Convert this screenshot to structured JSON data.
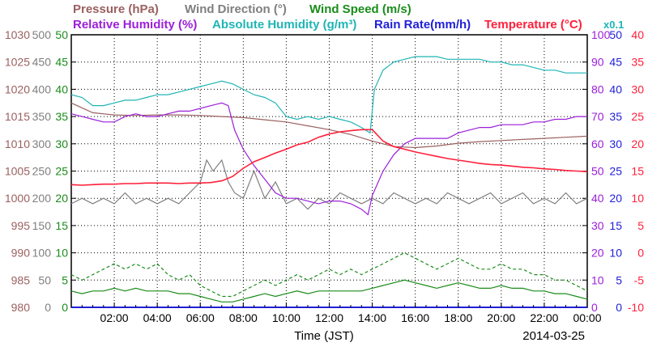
{
  "chart_data": {
    "type": "line",
    "date": "2014-03-25",
    "xlabel": "Time (JST)",
    "grid": true,
    "x_ticks": [
      "02:00",
      "04:00",
      "06:00",
      "08:00",
      "10:00",
      "12:00",
      "14:00",
      "16:00",
      "18:00",
      "20:00",
      "22:00",
      "00:00"
    ],
    "x_range_hours": [
      0,
      24
    ],
    "legend": {
      "row1": [
        {
          "key": "pressure",
          "text": "Pressure (hPa)"
        },
        {
          "key": "wind_dir",
          "text": "Wind Direction (°)"
        },
        {
          "key": "wind_speed",
          "text": "Wind Speed (m/s)"
        }
      ],
      "row2": [
        {
          "key": "rh",
          "text": "Relative Humidity (%)"
        },
        {
          "key": "abs_hum",
          "text": "Absolute Humidity (g/m³)"
        },
        {
          "key": "rain",
          "text": "Rain Rate(mm/h)"
        },
        {
          "key": "temp",
          "text": "Temperature (°C)"
        },
        {
          "key": "rain_x",
          "text": "x0.1"
        }
      ]
    },
    "axes": {
      "pressure": {
        "color": "#9b6060",
        "min": 980,
        "max": 1030,
        "ticks": [
          "1030",
          "1025",
          "1020",
          "1015",
          "1010",
          "1005",
          "1000",
          "995",
          "990",
          "985",
          "980"
        ]
      },
      "wind_dir": {
        "color": "#7f7f7f",
        "min": 0,
        "max": 500,
        "ticks": [
          "500",
          "450",
          "400",
          "350",
          "300",
          "250",
          "200",
          "150",
          "100",
          "50",
          "0"
        ]
      },
      "wind_speed": {
        "color": "#1a8c1a",
        "min": 0,
        "max": 50,
        "ticks": [
          "50",
          "45",
          "40",
          "35",
          "30",
          "25",
          "20",
          "15",
          "10",
          "5",
          "0"
        ]
      },
      "rh": {
        "color": "#9b1fd9",
        "min": 0,
        "max": 100,
        "ticks": [
          "100",
          "90",
          "80",
          "70",
          "60",
          "50",
          "40",
          "30",
          "20",
          "10",
          "0"
        ]
      },
      "rain": {
        "color": "#1f1fd9",
        "min": 0,
        "max": 50,
        "ticks": [
          "50",
          "45",
          "40",
          "35",
          "30",
          "25",
          "20",
          "15",
          "10",
          "5",
          "0"
        ]
      },
      "temp": {
        "color": "#ff1f3a",
        "min": -10,
        "max": 40,
        "ticks": [
          "40",
          "35",
          "30",
          "25",
          "20",
          "15",
          "10",
          "5",
          "0",
          "-5",
          "-10"
        ]
      }
    },
    "series": [
      {
        "name": "Pressure (hPa)",
        "axis": "pressure",
        "color": "#9b6060",
        "x": [
          0,
          1,
          2,
          3,
          4,
          5,
          6,
          7,
          8,
          9,
          10,
          11,
          12,
          13,
          14,
          15,
          16,
          17,
          18,
          19,
          20,
          21,
          22,
          23,
          24
        ],
        "y": [
          1017.5,
          1015.7,
          1015.3,
          1015.2,
          1015.3,
          1015.3,
          1015.2,
          1015.0,
          1014.8,
          1014.4,
          1014.0,
          1013.3,
          1012.6,
          1011.7,
          1010.5,
          1009.5,
          1009.3,
          1009.6,
          1010.1,
          1010.4,
          1010.6,
          1010.8,
          1011.0,
          1011.2,
          1011.4
        ]
      },
      {
        "name": "Wind Direction (°)",
        "axis": "wind_dir",
        "color": "#7f7f7f",
        "x": [
          0,
          0.5,
          1,
          1.5,
          2,
          2.5,
          3,
          3.5,
          4,
          4.5,
          5,
          5.5,
          6,
          6.3,
          6.6,
          7,
          7.3,
          7.6,
          8,
          8.5,
          9,
          9.5,
          10,
          10.5,
          11,
          11.5,
          12,
          12.5,
          13,
          13.5,
          14,
          14.5,
          15,
          15.5,
          16,
          16.5,
          17,
          17.5,
          18,
          18.5,
          19,
          19.5,
          20,
          20.5,
          21,
          21.5,
          22,
          22.5,
          23,
          23.5,
          24
        ],
        "y": [
          190,
          200,
          190,
          200,
          190,
          210,
          190,
          200,
          190,
          200,
          190,
          210,
          230,
          270,
          250,
          270,
          230,
          210,
          200,
          250,
          200,
          230,
          190,
          200,
          180,
          200,
          190,
          210,
          200,
          190,
          200,
          190,
          210,
          200,
          190,
          200,
          190,
          210,
          200,
          190,
          200,
          210,
          190,
          200,
          210,
          190,
          200,
          190,
          210,
          190,
          200
        ]
      },
      {
        "name": "Wind Speed (m/s) peak",
        "axis": "wind_speed",
        "color": "#1a8c1a",
        "dashed": true,
        "x": [
          0,
          0.5,
          1,
          1.5,
          2,
          2.5,
          3,
          3.5,
          4,
          4.5,
          5,
          5.5,
          6,
          6.5,
          7,
          7.5,
          8,
          8.5,
          9,
          9.5,
          10,
          10.5,
          11,
          11.5,
          12,
          12.5,
          13,
          13.5,
          14,
          14.5,
          15,
          15.5,
          16,
          16.5,
          17,
          17.5,
          18,
          18.5,
          19,
          19.5,
          20,
          20.5,
          21,
          21.5,
          22,
          22.5,
          23,
          23.5,
          24
        ],
        "y": [
          6,
          5,
          6,
          7,
          8,
          7,
          8,
          7,
          8,
          6,
          5,
          6,
          4,
          3,
          2,
          2,
          3,
          4,
          5,
          4,
          5,
          6,
          5,
          6,
          7,
          6,
          7,
          6,
          7,
          8,
          9,
          10,
          9,
          8,
          7,
          8,
          9,
          8,
          7,
          7,
          8,
          7,
          7,
          6,
          6,
          5,
          5,
          4,
          3
        ]
      },
      {
        "name": "Wind Speed (m/s)",
        "axis": "wind_speed",
        "color": "#1a8c1a",
        "x": [
          0,
          0.5,
          1,
          1.5,
          2,
          2.5,
          3,
          3.5,
          4,
          4.5,
          5,
          5.5,
          6,
          6.5,
          7,
          7.5,
          8,
          8.5,
          9,
          9.5,
          10,
          10.5,
          11,
          11.5,
          12,
          12.5,
          13,
          13.5,
          14,
          14.5,
          15,
          15.5,
          16,
          16.5,
          17,
          17.5,
          18,
          18.5,
          19,
          19.5,
          20,
          20.5,
          21,
          21.5,
          22,
          22.5,
          23,
          23.5,
          24
        ],
        "y": [
          3,
          2.5,
          3,
          3,
          3.5,
          3,
          3.5,
          3,
          3,
          3,
          2.5,
          2.5,
          2,
          1.5,
          1,
          1,
          1.5,
          2,
          2.5,
          2,
          2.5,
          3,
          2.5,
          3,
          3,
          3,
          3,
          3,
          3.5,
          4,
          4.5,
          5,
          4.5,
          4,
          3.5,
          4,
          4.5,
          4,
          3.5,
          3.5,
          4,
          3.5,
          3.5,
          3,
          3,
          2.5,
          2.5,
          2,
          1.5
        ]
      },
      {
        "name": "Relative Humidity (%)",
        "axis": "rh",
        "color": "#9b1fd9",
        "x": [
          0,
          0.5,
          1,
          1.5,
          2,
          2.5,
          3,
          3.5,
          4,
          4.5,
          5,
          5.5,
          6,
          6.5,
          7,
          7.3,
          7.6,
          8,
          8.5,
          9,
          9.5,
          10,
          10.5,
          11,
          11.5,
          12,
          12.5,
          13,
          13.5,
          13.8,
          14,
          14.5,
          15,
          15.5,
          16,
          16.5,
          17,
          17.5,
          18,
          18.5,
          19,
          19.5,
          20,
          20.5,
          21,
          21.5,
          22,
          22.5,
          23,
          23.5,
          24
        ],
        "y": [
          71,
          70,
          69,
          68,
          68,
          70,
          71,
          70,
          70,
          71,
          72,
          72,
          73,
          74,
          75,
          74,
          65,
          58,
          52,
          47,
          42,
          40,
          40,
          39,
          38,
          39,
          39,
          38,
          36,
          34,
          41,
          50,
          56,
          60,
          62,
          62,
          62,
          62,
          64,
          65,
          66,
          66,
          67,
          67,
          67,
          68,
          68,
          69,
          69,
          70,
          70
        ]
      },
      {
        "name": "Absolute Humidity (g/m³)",
        "axis": "rh",
        "color": "#1fb5b5",
        "x": [
          0,
          0.5,
          1,
          1.5,
          2,
          2.5,
          3,
          3.5,
          4,
          4.5,
          5,
          5.5,
          6,
          6.5,
          7,
          7.5,
          8,
          8.5,
          9,
          9.5,
          10,
          10.5,
          11,
          11.5,
          12,
          12.5,
          13,
          13.5,
          13.9,
          14.1,
          14.5,
          15,
          15.5,
          16,
          16.5,
          17,
          17.5,
          18,
          18.5,
          19,
          19.5,
          20,
          20.5,
          21,
          21.5,
          22,
          22.5,
          23,
          23.5,
          24
        ],
        "y": [
          78,
          77,
          74,
          74,
          75,
          76,
          76,
          77,
          78,
          78,
          79,
          80,
          81,
          82,
          83,
          82,
          80,
          78,
          77,
          75,
          70,
          69,
          70,
          69,
          70,
          69,
          68,
          66,
          64,
          80,
          87,
          90,
          91,
          92,
          92,
          92,
          91,
          91,
          91,
          91,
          90,
          90,
          89,
          89,
          88,
          87,
          87,
          86,
          86,
          86
        ]
      },
      {
        "name": "Temperature (°C)",
        "axis": "temp",
        "color": "#ff1f3a",
        "x": [
          0,
          0.5,
          1,
          1.5,
          2,
          2.5,
          3,
          3.5,
          4,
          4.5,
          5,
          5.5,
          6,
          6.5,
          7,
          7.5,
          8,
          8.5,
          9,
          9.5,
          10,
          10.5,
          11,
          11.5,
          12,
          12.5,
          13,
          13.5,
          14,
          14.5,
          15,
          15.5,
          16,
          16.5,
          17,
          17.5,
          18,
          18.5,
          19,
          19.5,
          20,
          20.5,
          21,
          21.5,
          22,
          22.5,
          23,
          23.5,
          24
        ],
        "y": [
          12.5,
          12.4,
          12.5,
          12.6,
          12.6,
          12.7,
          12.7,
          12.8,
          12.8,
          12.8,
          12.7,
          12.8,
          12.8,
          12.9,
          13.2,
          14,
          15.5,
          16.7,
          17.5,
          18.3,
          19,
          19.8,
          20.3,
          21.2,
          21.8,
          22.2,
          22.4,
          22.6,
          22.6,
          20.5,
          19.5,
          19,
          18.5,
          18.1,
          17.7,
          17.3,
          17,
          16.7,
          16.4,
          16.2,
          16.1,
          15.9,
          15.7,
          15.6,
          15.4,
          15.3,
          15.1,
          15,
          14.9
        ]
      },
      {
        "name": "Rain Rate(mm/h)",
        "axis": "rain",
        "color": "#1f1fd9",
        "x": [
          0,
          24
        ],
        "y": [
          0,
          0
        ]
      }
    ]
  }
}
